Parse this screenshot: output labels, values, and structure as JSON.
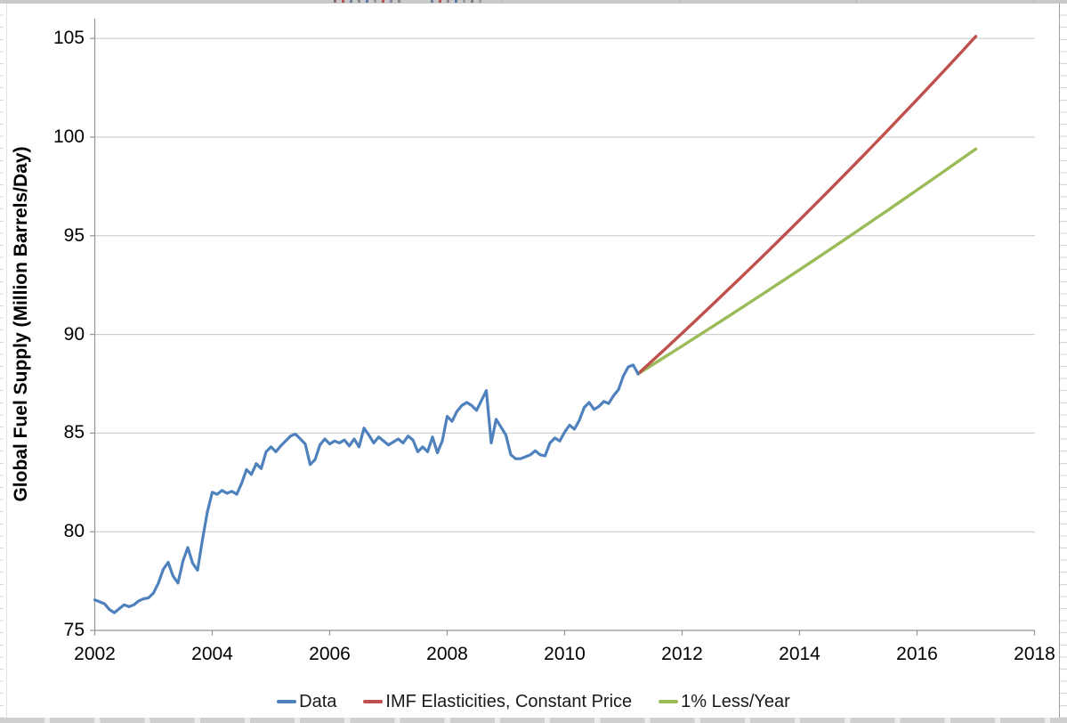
{
  "chart_data": {
    "type": "line",
    "title": "",
    "ylabel": "Global Fuel Supply (Million Barrels/Day)",
    "xlabel": "",
    "xlim": [
      2002,
      2018.02
    ],
    "ylim": [
      75,
      106
    ],
    "xticks": [
      2002,
      2004,
      2006,
      2008,
      2010,
      2012,
      2014,
      2016,
      2018
    ],
    "yticks": [
      75,
      80,
      85,
      90,
      95,
      100,
      105
    ],
    "grid": "horizontal-major",
    "legend_position": "bottom-center",
    "axis_color": "#949494",
    "gridline_color": "#c6c6c6",
    "series": [
      {
        "name": "Data",
        "color": "#4F81BD",
        "x_start": 2002.0,
        "x_interval_years": 0.08333,
        "values": [
          76.55,
          76.45,
          76.35,
          76.05,
          75.9,
          76.1,
          76.3,
          76.2,
          76.3,
          76.5,
          76.6,
          76.65,
          76.9,
          77.4,
          78.1,
          78.45,
          77.75,
          77.4,
          78.5,
          79.2,
          78.4,
          78.05,
          79.6,
          81.0,
          82.0,
          81.9,
          82.1,
          81.95,
          82.05,
          81.9,
          82.45,
          83.15,
          82.9,
          83.45,
          83.2,
          84.05,
          84.3,
          84.05,
          84.35,
          84.6,
          84.85,
          84.95,
          84.7,
          84.45,
          83.4,
          83.65,
          84.4,
          84.7,
          84.45,
          84.6,
          84.5,
          84.65,
          84.35,
          84.7,
          84.3,
          85.25,
          84.9,
          84.5,
          84.8,
          84.6,
          84.4,
          84.55,
          84.7,
          84.5,
          84.85,
          84.65,
          84.05,
          84.3,
          84.05,
          84.8,
          84.0,
          84.6,
          85.85,
          85.6,
          86.1,
          86.4,
          86.55,
          86.4,
          86.15,
          86.65,
          87.15,
          84.5,
          85.7,
          85.3,
          84.9,
          83.9,
          83.7,
          83.7,
          83.8,
          83.9,
          84.1,
          83.9,
          83.85,
          84.5,
          84.75,
          84.6,
          85.05,
          85.4,
          85.2,
          85.65,
          86.3,
          86.55,
          86.2,
          86.35,
          86.6,
          86.5,
          86.9,
          87.2,
          87.9,
          88.35,
          88.45,
          88.0
        ]
      },
      {
        "name": "IMF Elasticities, Constant Price",
        "color": "#C0504D",
        "model": "exponential",
        "x_range": [
          2011.25,
          2017.0
        ],
        "value_range": [
          88.0,
          105.1
        ]
      },
      {
        "name": "1% Less/Year",
        "color": "#9BBB59",
        "model": "exponential",
        "x_range": [
          2011.25,
          2017.0
        ],
        "value_range": [
          88.0,
          99.4
        ]
      }
    ]
  }
}
